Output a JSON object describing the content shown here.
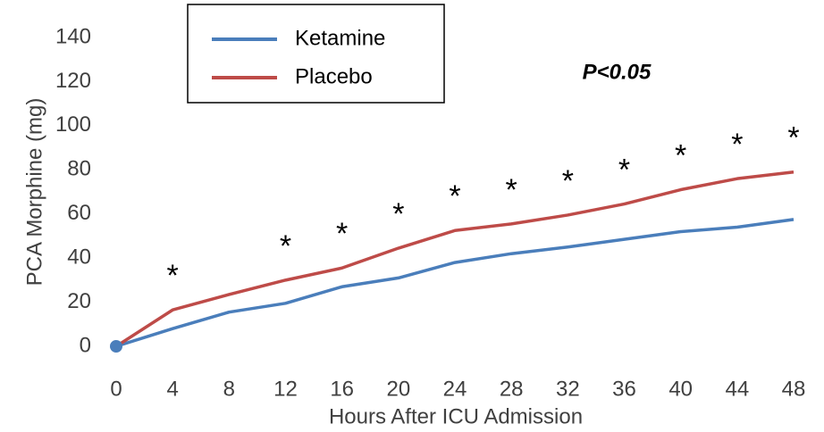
{
  "chart_data": {
    "type": "line",
    "x_label": "Hours After ICU Admission",
    "y_label": "PCA Morphine (mg)",
    "x": [
      0,
      4,
      8,
      12,
      16,
      20,
      24,
      28,
      32,
      36,
      40,
      44,
      48
    ],
    "series": [
      {
        "name": "Ketamine",
        "color": "#4a7ebb",
        "values": [
          0,
          8,
          15.5,
          19.5,
          27,
          31,
          38,
          42,
          45,
          48.5,
          52,
          54,
          57.5
        ]
      },
      {
        "name": "Placebo",
        "color": "#be4b48",
        "values": [
          0,
          16.5,
          23.5,
          30,
          35.5,
          44.5,
          52.5,
          55.5,
          59.5,
          64.5,
          71,
          76,
          79
        ]
      }
    ],
    "xlim": [
      0,
      48
    ],
    "xticks": [
      0,
      4,
      8,
      12,
      16,
      20,
      24,
      28,
      32,
      36,
      40,
      44,
      48
    ],
    "ylim": [
      0,
      140
    ],
    "yticks": [
      0,
      20,
      40,
      60,
      80,
      100,
      120,
      140
    ],
    "annotation": "P<0.05",
    "significance_marks": {
      "text": "*",
      "x": [
        4,
        12,
        16,
        20,
        24,
        28,
        32,
        36,
        40,
        44,
        48
      ]
    },
    "legend": "top-left"
  }
}
